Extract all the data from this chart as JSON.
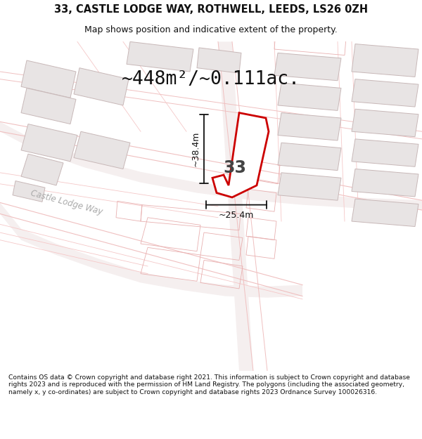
{
  "title_line1": "33, CASTLE LODGE WAY, ROTHWELL, LEEDS, LS26 0ZH",
  "title_line2": "Map shows position and indicative extent of the property.",
  "area_label": "~448m²/~0.111ac.",
  "property_number": "33",
  "width_label": "~25.4m",
  "height_label": "~38.4m",
  "street_label": "Castle Lodge Way",
  "footer_text": "Contains OS data © Crown copyright and database right 2021. This information is subject to Crown copyright and database rights 2023 and is reproduced with the permission of HM Land Registry. The polygons (including the associated geometry, namely x, y co-ordinates) are subject to Crown copyright and database rights 2023 Ordnance Survey 100026316.",
  "bg_color": "#ffffff",
  "map_bg": "#ffffff",
  "plot_outline_color": "#cc0000",
  "dim_line_color": "#111111",
  "title_color": "#111111",
  "footer_color": "#111111",
  "building_fill": "#e8e4e4",
  "building_edge": "#c8b8b8",
  "road_edge": "#f0c0c0",
  "road_fill": "#f5efef",
  "street_text_color": "#aaaaaa"
}
